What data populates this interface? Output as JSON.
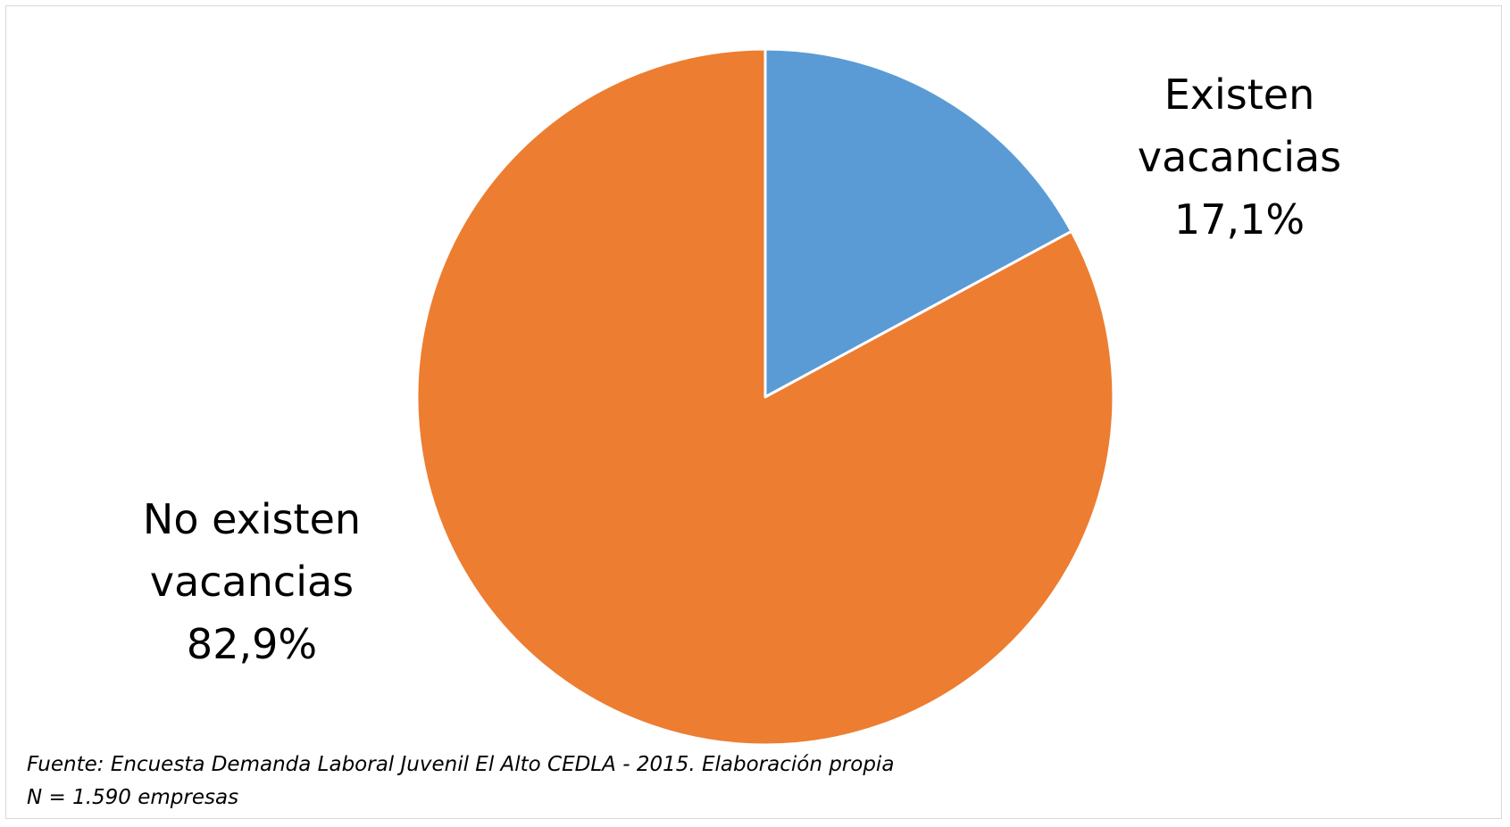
{
  "chart_data": {
    "type": "pie",
    "title": "",
    "slices": [
      {
        "label_lines": [
          "Existen",
          "vacancias"
        ],
        "value": 17.1,
        "value_label": "17,1%",
        "color": "#5B9BD5"
      },
      {
        "label_lines": [
          "No existen",
          "vacancias"
        ],
        "value": 82.9,
        "value_label": "82,9%",
        "color": "#ED7D31"
      }
    ],
    "start": "12 o'clock, clockwise",
    "slice_border_color": "#ffffff",
    "legend": "none"
  },
  "footnote": {
    "source": "Fuente: Encuesta Demanda Laboral Juvenil El Alto CEDLA - 2015. Elaboración propia",
    "n": "N = 1.590 empresas"
  }
}
